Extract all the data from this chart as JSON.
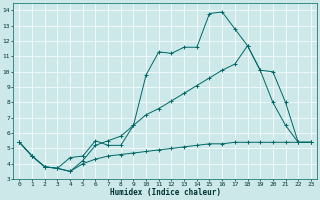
{
  "title": "",
  "xlabel": "Humidex (Indice chaleur)",
  "bg_color": "#cce8e8",
  "grid_color": "#ffffff",
  "line_color": "#006666",
  "xlim": [
    -0.5,
    23.5
  ],
  "ylim": [
    3,
    14.5
  ],
  "xticks": [
    0,
    1,
    2,
    3,
    4,
    5,
    6,
    7,
    8,
    9,
    10,
    11,
    12,
    13,
    14,
    15,
    16,
    17,
    18,
    19,
    20,
    21,
    22,
    23
  ],
  "yticks": [
    3,
    4,
    5,
    6,
    7,
    8,
    9,
    10,
    11,
    12,
    13,
    14
  ],
  "line1_x": [
    0,
    1,
    2,
    3,
    4,
    5,
    6,
    7,
    8,
    9,
    10,
    11,
    12,
    13,
    14,
    15,
    16,
    17,
    18,
    19,
    20,
    21,
    22,
    23
  ],
  "line1_y": [
    5.4,
    4.5,
    3.8,
    3.7,
    4.4,
    4.5,
    5.5,
    5.2,
    5.2,
    6.5,
    9.8,
    11.3,
    11.2,
    11.6,
    11.6,
    13.8,
    13.9,
    12.8,
    11.7,
    10.1,
    8.0,
    6.5,
    5.4,
    5.4
  ],
  "line2_x": [
    0,
    1,
    2,
    3,
    4,
    5,
    6,
    7,
    8,
    9,
    10,
    11,
    12,
    13,
    14,
    15,
    16,
    17,
    18,
    19,
    20,
    21,
    22,
    23
  ],
  "line2_y": [
    5.4,
    4.5,
    3.8,
    3.7,
    3.5,
    4.2,
    5.2,
    5.5,
    5.8,
    6.5,
    7.2,
    7.6,
    8.1,
    8.6,
    9.1,
    9.6,
    10.1,
    10.5,
    11.7,
    10.1,
    10.0,
    8.0,
    5.4,
    5.4
  ],
  "line3_x": [
    0,
    1,
    2,
    3,
    4,
    5,
    6,
    7,
    8,
    9,
    10,
    11,
    12,
    13,
    14,
    15,
    16,
    17,
    18,
    19,
    20,
    21,
    22,
    23
  ],
  "line3_y": [
    5.4,
    4.5,
    3.8,
    3.7,
    3.5,
    4.0,
    4.3,
    4.5,
    4.6,
    4.7,
    4.8,
    4.9,
    5.0,
    5.1,
    5.2,
    5.3,
    5.3,
    5.4,
    5.4,
    5.4,
    5.4,
    5.4,
    5.4,
    5.4
  ]
}
